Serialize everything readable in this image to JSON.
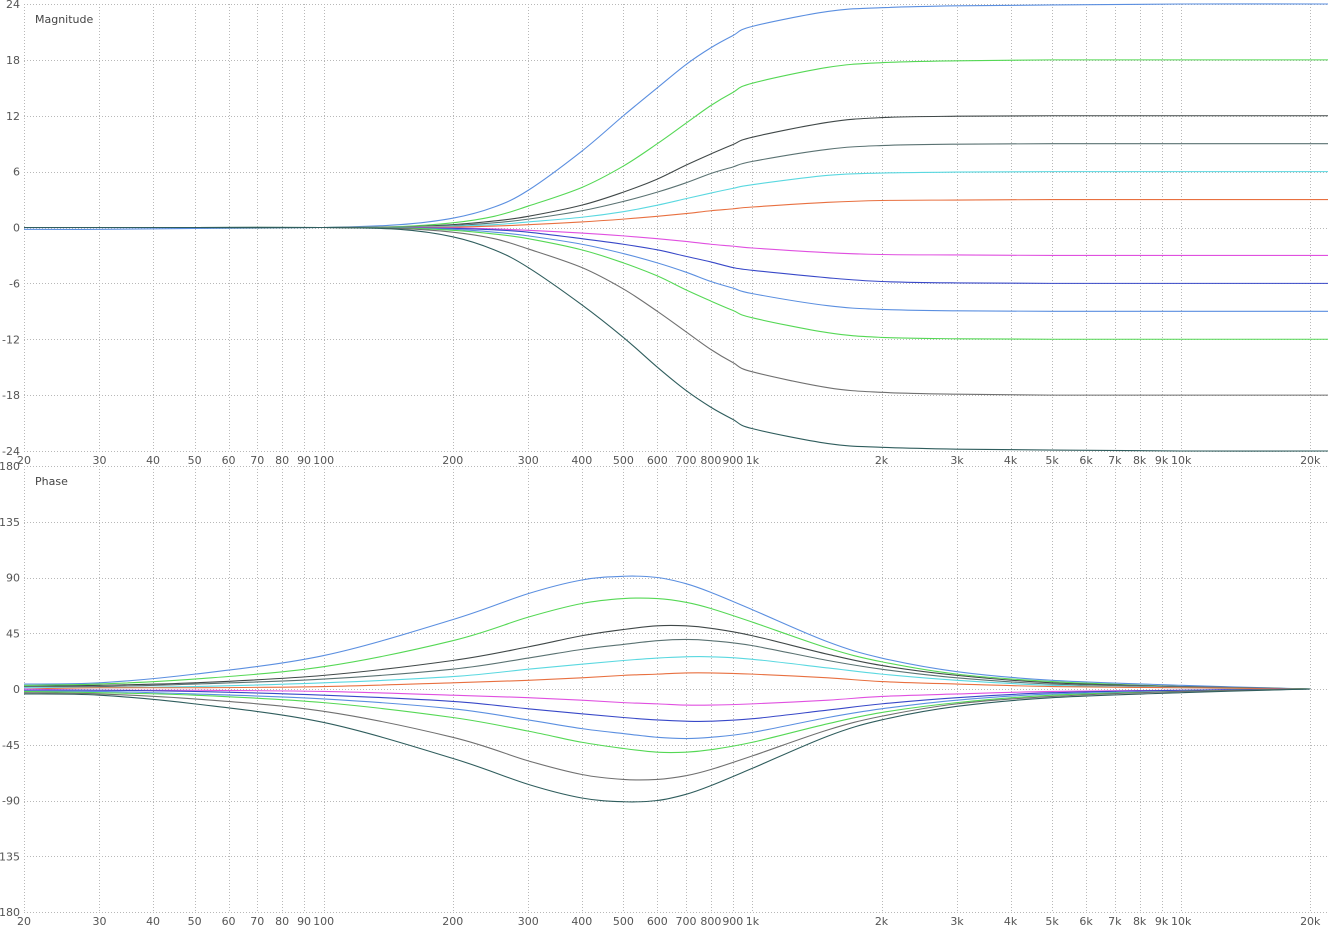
{
  "chart_data": [
    {
      "type": "line",
      "title": "Magnitude",
      "x_scale": "log",
      "xlim": [
        20,
        22000
      ],
      "ylim": [
        -24,
        24
      ],
      "y_ticks": [
        24,
        18,
        12,
        6,
        0,
        -6,
        -12,
        -18,
        -24
      ],
      "x_ticks": [
        {
          "value": 20,
          "label": "20"
        },
        {
          "value": 30,
          "label": "30"
        },
        {
          "value": 40,
          "label": "40"
        },
        {
          "value": 50,
          "label": "50"
        },
        {
          "value": 60,
          "label": "60"
        },
        {
          "value": 70,
          "label": "70"
        },
        {
          "value": 80,
          "label": "80"
        },
        {
          "value": 90,
          "label": "90"
        },
        {
          "value": 100,
          "label": "100"
        },
        {
          "value": 200,
          "label": "200"
        },
        {
          "value": 300,
          "label": "300"
        },
        {
          "value": 400,
          "label": "400"
        },
        {
          "value": 500,
          "label": "500"
        },
        {
          "value": 600,
          "label": "600"
        },
        {
          "value": 700,
          "label": "700"
        },
        {
          "value": 800,
          "label": "800"
        },
        {
          "value": 900,
          "label": "900"
        },
        {
          "value": 1000,
          "label": "1k"
        },
        {
          "value": 2000,
          "label": "2k"
        },
        {
          "value": 3000,
          "label": "3k"
        },
        {
          "value": 4000,
          "label": "4k"
        },
        {
          "value": 5000,
          "label": "5k"
        },
        {
          "value": 6000,
          "label": "6k"
        },
        {
          "value": 7000,
          "label": "7k"
        },
        {
          "value": 8000,
          "label": "8k"
        },
        {
          "value": 9000,
          "label": "9k"
        },
        {
          "value": 10000,
          "label": "10k"
        },
        {
          "value": 20000,
          "label": "20k"
        }
      ],
      "grid": true,
      "x": [
        20,
        30,
        50,
        100,
        150,
        200,
        250,
        300,
        400,
        500,
        600,
        700,
        800,
        900,
        1000,
        1500,
        2000,
        3000,
        5000,
        10000,
        22000
      ],
      "series": [
        {
          "color": "#5b8fe0",
          "values": [
            -0.2,
            -0.2,
            -0.1,
            0.0,
            0.3,
            1.0,
            2.2,
            4.0,
            8.2,
            12.0,
            15.0,
            17.5,
            19.3,
            20.6,
            21.6,
            23.2,
            23.6,
            23.8,
            23.9,
            24.0,
            24.0
          ]
        },
        {
          "color": "#55d855",
          "values": [
            0,
            0,
            0,
            0,
            0.1,
            0.5,
            1.2,
            2.3,
            4.3,
            6.6,
            9.0,
            11.2,
            13.1,
            14.5,
            15.5,
            17.2,
            17.7,
            17.9,
            18.0,
            18.0,
            18.0
          ]
        },
        {
          "color": "#404848",
          "values": [
            0,
            0,
            0,
            0,
            0.05,
            0.3,
            0.7,
            1.2,
            2.4,
            3.8,
            5.2,
            6.7,
            7.9,
            8.9,
            9.7,
            11.3,
            11.8,
            11.95,
            12.0,
            12.0,
            12.0
          ]
        },
        {
          "color": "#5a7272",
          "values": [
            0,
            0,
            0,
            0,
            0.04,
            0.2,
            0.5,
            0.9,
            1.8,
            2.8,
            3.8,
            4.8,
            5.8,
            6.5,
            7.1,
            8.4,
            8.8,
            8.95,
            9.0,
            9.0,
            9.0
          ]
        },
        {
          "color": "#5ad8e0",
          "values": [
            0,
            0,
            0,
            0,
            0.02,
            0.15,
            0.3,
            0.6,
            1.1,
            1.7,
            2.4,
            3.1,
            3.7,
            4.2,
            4.6,
            5.6,
            5.85,
            5.95,
            6.0,
            6.0,
            6.0
          ]
        },
        {
          "color": "#e87040",
          "values": [
            0,
            0,
            0,
            0,
            0.01,
            0.05,
            0.15,
            0.3,
            0.6,
            0.9,
            1.2,
            1.5,
            1.8,
            2.0,
            2.2,
            2.7,
            2.9,
            2.95,
            3.0,
            3.0,
            3.0
          ]
        },
        {
          "color": "#e050e0",
          "values": [
            0,
            0,
            0,
            0,
            -0.01,
            -0.05,
            -0.15,
            -0.3,
            -0.6,
            -0.9,
            -1.2,
            -1.5,
            -1.8,
            -2.0,
            -2.2,
            -2.7,
            -2.9,
            -2.95,
            -3.0,
            -3.0,
            -3.0
          ]
        },
        {
          "color": "#3848c8",
          "values": [
            0,
            0,
            0,
            0,
            -0.02,
            -0.1,
            -0.25,
            -0.5,
            -1.2,
            -1.8,
            -2.4,
            -3.1,
            -3.7,
            -4.3,
            -4.6,
            -5.4,
            -5.8,
            -5.95,
            -6.0,
            -6.0,
            -6.0
          ]
        },
        {
          "color": "#5b8fe0",
          "values": [
            0,
            0,
            0,
            0,
            -0.04,
            -0.2,
            -0.5,
            -0.9,
            -1.8,
            -2.8,
            -3.8,
            -4.8,
            -5.8,
            -6.5,
            -7.1,
            -8.4,
            -8.8,
            -8.95,
            -9.0,
            -9.0,
            -9.0
          ]
        },
        {
          "color": "#55d855",
          "values": [
            0,
            0,
            0,
            0,
            -0.05,
            -0.3,
            -0.7,
            -1.2,
            -2.4,
            -3.8,
            -5.2,
            -6.7,
            -7.9,
            -8.9,
            -9.7,
            -11.3,
            -11.8,
            -11.95,
            -12.0,
            -12.0,
            -12.0
          ]
        },
        {
          "color": "#707070",
          "values": [
            0,
            0,
            0,
            0,
            -0.1,
            -0.5,
            -1.2,
            -2.3,
            -4.3,
            -6.6,
            -9.0,
            -11.2,
            -13.1,
            -14.5,
            -15.5,
            -17.2,
            -17.7,
            -17.9,
            -18.0,
            -18.0,
            -18.0
          ]
        },
        {
          "color": "#2f5d5d",
          "values": [
            0,
            0,
            0,
            0,
            -0.2,
            -1.0,
            -2.4,
            -4.3,
            -8.3,
            -11.8,
            -15.0,
            -17.5,
            -19.3,
            -20.6,
            -21.6,
            -23.2,
            -23.6,
            -23.8,
            -23.9,
            -24.0,
            -24.0
          ]
        }
      ]
    },
    {
      "type": "line",
      "title": "Phase",
      "x_scale": "log",
      "xlim": [
        20,
        22000
      ],
      "ylim": [
        -180,
        180
      ],
      "y_ticks": [
        180,
        135,
        90,
        45,
        0,
        -45,
        -90,
        -135,
        -180
      ],
      "x_ticks": [
        {
          "value": 20,
          "label": "20"
        },
        {
          "value": 30,
          "label": "30"
        },
        {
          "value": 40,
          "label": "40"
        },
        {
          "value": 50,
          "label": "50"
        },
        {
          "value": 60,
          "label": "60"
        },
        {
          "value": 70,
          "label": "70"
        },
        {
          "value": 80,
          "label": "80"
        },
        {
          "value": 90,
          "label": "90"
        },
        {
          "value": 100,
          "label": "100"
        },
        {
          "value": 200,
          "label": "200"
        },
        {
          "value": 300,
          "label": "300"
        },
        {
          "value": 400,
          "label": "400"
        },
        {
          "value": 500,
          "label": "500"
        },
        {
          "value": 600,
          "label": "600"
        },
        {
          "value": 700,
          "label": "700"
        },
        {
          "value": 800,
          "label": "800"
        },
        {
          "value": 900,
          "label": "900"
        },
        {
          "value": 1000,
          "label": "1k"
        },
        {
          "value": 2000,
          "label": "2k"
        },
        {
          "value": 3000,
          "label": "3k"
        },
        {
          "value": 4000,
          "label": "4k"
        },
        {
          "value": 5000,
          "label": "5k"
        },
        {
          "value": 6000,
          "label": "6k"
        },
        {
          "value": 7000,
          "label": "7k"
        },
        {
          "value": 8000,
          "label": "8k"
        },
        {
          "value": 9000,
          "label": "9k"
        },
        {
          "value": 10000,
          "label": "10k"
        },
        {
          "value": 20000,
          "label": "20k"
        }
      ],
      "grid": true,
      "x": [
        20,
        30,
        50,
        100,
        200,
        300,
        400,
        500,
        600,
        700,
        800,
        1000,
        1500,
        2000,
        3000,
        5000,
        10000,
        20000
      ],
      "series": [
        {
          "color": "#5b8fe0",
          "values": [
            4,
            5,
            12,
            27,
            56,
            77,
            88,
            91,
            90,
            85,
            78,
            64,
            38,
            25,
            14,
            7,
            3,
            0
          ]
        },
        {
          "color": "#55d855",
          "values": [
            3,
            4,
            8,
            18,
            39,
            58,
            69,
            73,
            73,
            70,
            65,
            54,
            33,
            22,
            12,
            6,
            2,
            0
          ]
        },
        {
          "color": "#404848",
          "values": [
            2,
            3,
            5,
            11,
            23,
            34,
            43,
            48,
            51,
            51,
            49,
            43,
            28,
            19,
            11,
            5,
            2,
            0
          ]
        },
        {
          "color": "#5a7272",
          "values": [
            2,
            2,
            4,
            8,
            16,
            25,
            32,
            36,
            39,
            40,
            39,
            35,
            23,
            16,
            9,
            4,
            2,
            0
          ]
        },
        {
          "color": "#5ad8e0",
          "values": [
            1,
            1,
            2,
            5,
            10,
            16,
            20,
            23,
            25,
            26,
            26,
            24,
            17,
            12,
            7,
            3,
            1,
            0
          ]
        },
        {
          "color": "#e87040",
          "values": [
            0,
            1,
            1,
            2,
            5,
            7,
            9,
            11,
            12,
            13,
            13,
            12,
            9,
            6,
            4,
            2,
            1,
            0
          ]
        },
        {
          "color": "#e050e0",
          "values": [
            0,
            -1,
            -1,
            -2,
            -5,
            -7,
            -9,
            -11,
            -12,
            -13,
            -13,
            -12,
            -9,
            -6,
            -4,
            -2,
            -1,
            0
          ]
        },
        {
          "color": "#3848c8",
          "values": [
            -1,
            -1,
            -2,
            -5,
            -10,
            -16,
            -20,
            -23,
            -25,
            -26,
            -26,
            -24,
            -17,
            -12,
            -7,
            -3,
            -1,
            0
          ]
        },
        {
          "color": "#5b8fe0",
          "values": [
            -2,
            -2,
            -4,
            -8,
            -16,
            -25,
            -32,
            -36,
            -39,
            -40,
            -39,
            -35,
            -23,
            -16,
            -9,
            -4,
            -2,
            0
          ]
        },
        {
          "color": "#55d855",
          "values": [
            -2,
            -3,
            -5,
            -11,
            -23,
            -34,
            -43,
            -48,
            -51,
            -51,
            -49,
            -43,
            -28,
            -19,
            -11,
            -5,
            -2,
            0
          ]
        },
        {
          "color": "#707070",
          "values": [
            -3,
            -4,
            -8,
            -18,
            -39,
            -58,
            -69,
            -73,
            -73,
            -70,
            -65,
            -54,
            -33,
            -22,
            -12,
            -6,
            -2,
            0
          ]
        },
        {
          "color": "#2f5d5d",
          "values": [
            -4,
            -5,
            -12,
            -27,
            -56,
            -77,
            -88,
            -91,
            -90,
            -85,
            -78,
            -64,
            -38,
            -25,
            -14,
            -7,
            -3,
            0
          ]
        }
      ]
    }
  ]
}
